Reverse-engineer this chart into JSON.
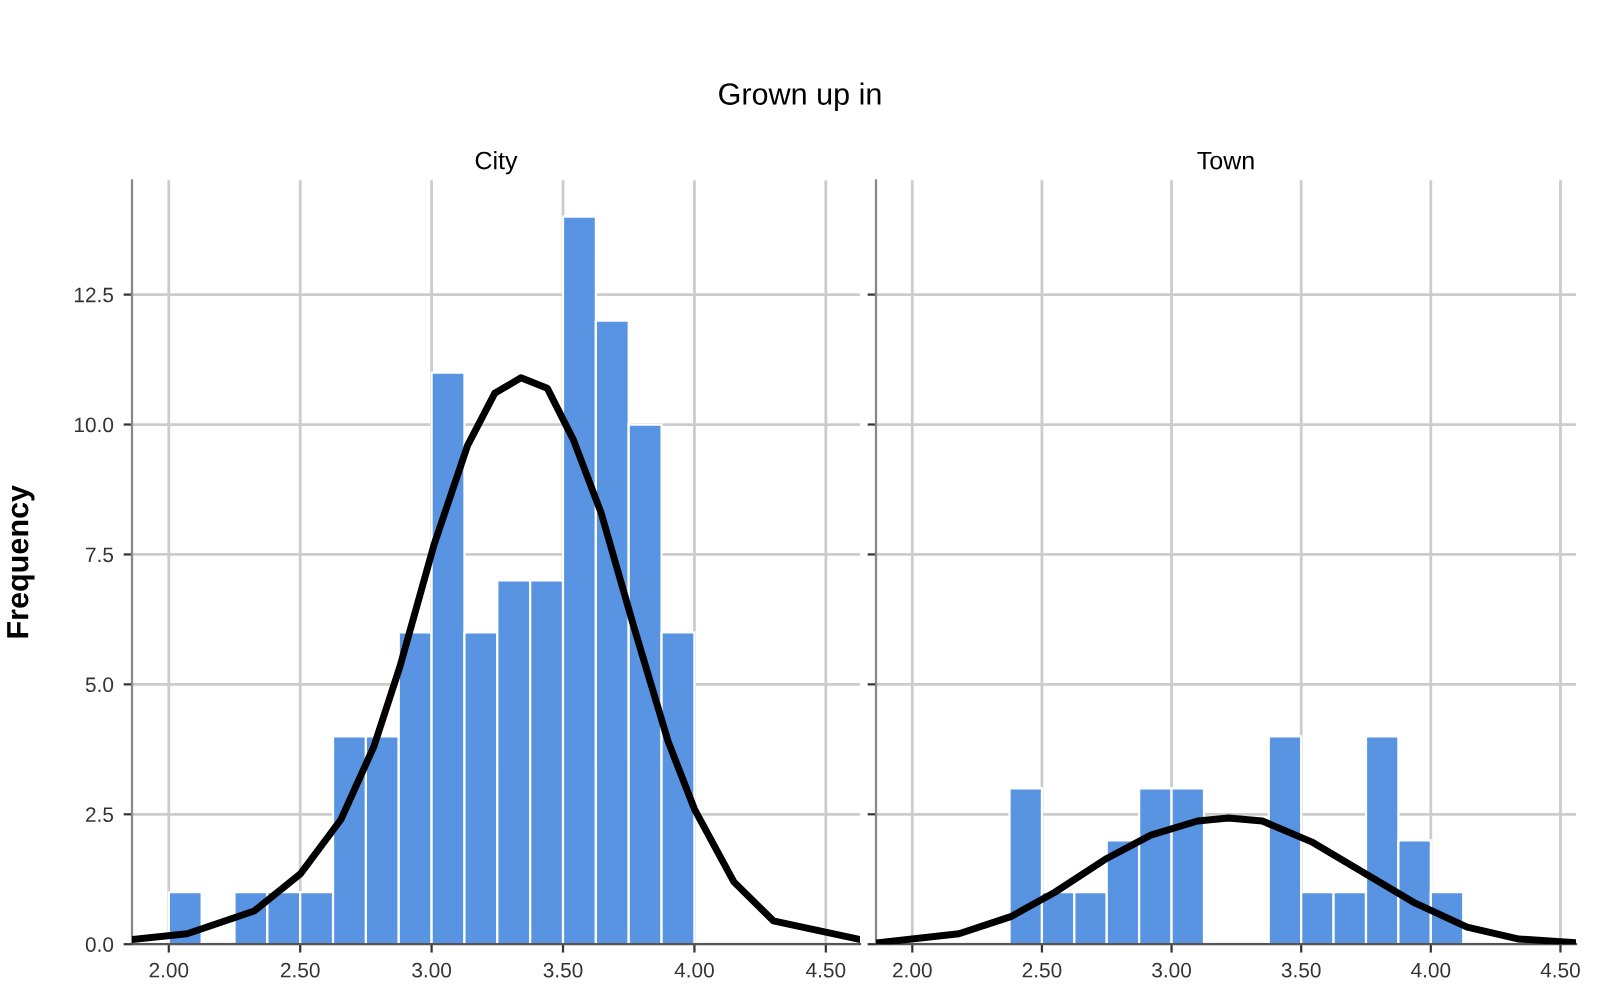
{
  "chart_data": [
    {
      "type": "histogram",
      "title": "City",
      "ylabel": "Frequency",
      "annotations": [
        "Grown up in"
      ],
      "bins": [
        2.0,
        2.125,
        2.25,
        2.375,
        2.5,
        2.625,
        2.75,
        2.875,
        3.0,
        3.125,
        3.25,
        3.375,
        3.5,
        3.625,
        3.75,
        3.875,
        4.0
      ],
      "values": [
        1,
        0,
        1,
        1,
        1,
        4,
        4,
        6,
        11,
        6,
        7,
        7,
        14,
        12,
        10,
        6
      ],
      "color": "#5894e1",
      "series": [
        {
          "type": "line",
          "color": "#000000",
          "x": [
            1.863,
            2.07,
            2.325,
            2.5,
            2.655,
            2.78,
            2.88,
            3.01,
            3.137,
            3.24,
            3.34,
            3.44,
            3.54,
            3.645,
            3.77,
            3.9,
            4.0,
            4.15,
            4.3,
            4.63
          ],
          "values": [
            0.09,
            0.2,
            0.64,
            1.35,
            2.4,
            3.8,
            5.35,
            7.7,
            9.6,
            10.6,
            10.9,
            10.7,
            9.7,
            8.3,
            6.1,
            3.9,
            2.6,
            1.2,
            0.45,
            0.09
          ]
        }
      ],
      "xlim": [
        1.86,
        4.63
      ],
      "xticks": [
        {
          "value": 2,
          "label": "2.00"
        },
        {
          "value": 2.5,
          "label": "2.50"
        },
        {
          "value": 3,
          "label": "3.00"
        },
        {
          "value": 3.5,
          "label": "3.50"
        },
        {
          "value": 4,
          "label": "4.00"
        },
        {
          "value": 4.5,
          "label": "4.50"
        }
      ],
      "ylim": [
        0,
        14.7
      ],
      "yticks": [
        {
          "value": 0,
          "label": "0.0"
        },
        {
          "value": 2.5,
          "label": "2.5"
        },
        {
          "value": 5,
          "label": "5.0"
        },
        {
          "value": 7.5,
          "label": "7.5"
        },
        {
          "value": 10,
          "label": "10.0"
        },
        {
          "value": 12.5,
          "label": "12.5"
        }
      ],
      "grid": true
    },
    {
      "type": "histogram",
      "title": "Town",
      "bins": [
        2.375,
        2.5,
        2.625,
        2.75,
        2.875,
        3.0,
        3.125,
        3.25,
        3.375,
        3.5,
        3.625,
        3.75,
        3.875,
        4.0,
        4.125
      ],
      "values": [
        3,
        1,
        1,
        2,
        3,
        3,
        0,
        0,
        4,
        1,
        1,
        4,
        2,
        1
      ],
      "color": "#5894e1",
      "series": [
        {
          "type": "line",
          "color": "#000000",
          "x": [
            1.87,
            2.18,
            2.38,
            2.55,
            2.75,
            2.92,
            3.1,
            3.22,
            3.35,
            3.54,
            3.74,
            3.94,
            4.14,
            4.34,
            4.56
          ],
          "values": [
            0.03,
            0.2,
            0.53,
            1.0,
            1.65,
            2.1,
            2.37,
            2.43,
            2.37,
            1.97,
            1.38,
            0.79,
            0.33,
            0.1,
            0.03
          ]
        }
      ],
      "xlim": [
        1.86,
        4.56
      ],
      "xticks": [
        {
          "value": 2,
          "label": "2.00"
        },
        {
          "value": 2.5,
          "label": "2.50"
        },
        {
          "value": 3,
          "label": "3.00"
        },
        {
          "value": 3.5,
          "label": "3.50"
        },
        {
          "value": 4,
          "label": "4.00"
        },
        {
          "value": 4.5,
          "label": "4.50"
        }
      ],
      "ylim": [
        0,
        14.7
      ],
      "yticks": [
        {
          "value": 0,
          "label": null
        },
        {
          "value": 2.5,
          "label": null
        },
        {
          "value": 5,
          "label": null
        },
        {
          "value": 7.5,
          "label": null
        },
        {
          "value": 10,
          "label": null
        },
        {
          "value": 12.5,
          "label": null
        }
      ],
      "tick_labels": "x",
      "grid": true
    }
  ]
}
